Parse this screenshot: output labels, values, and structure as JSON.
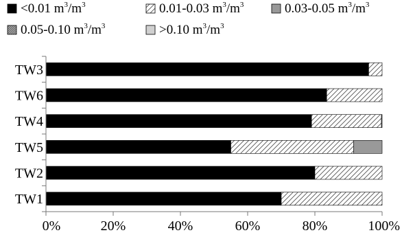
{
  "chart_data": {
    "type": "bar",
    "orientation": "horizontal",
    "stacked": true,
    "percent_stacked": true,
    "categories": [
      "TW3",
      "TW6",
      "TW4",
      "TW5",
      "TW2",
      "TW1"
    ],
    "series": [
      {
        "name": "<0.01 m³/m³",
        "name_parts": {
          "text": "<0.01 m",
          "sup1": "3",
          "mid": "/m",
          "sup2": "3"
        },
        "pattern": "solid-black",
        "values": [
          96,
          83.5,
          79,
          55,
          80,
          70
        ]
      },
      {
        "name": "0.01-0.03 m³/m³",
        "name_parts": {
          "text": "0.01-0.03 m",
          "sup1": "3",
          "mid": "/m",
          "sup2": "3"
        },
        "pattern": "diagonal-hatch",
        "values": [
          4,
          16.5,
          20.8,
          36.5,
          20,
          30
        ]
      },
      {
        "name": "0.03-0.05 m³/m³",
        "name_parts": {
          "text": "0.03-0.05 m",
          "sup1": "3",
          "mid": "/m",
          "sup2": "3"
        },
        "pattern": "solid-gray",
        "values": [
          0,
          0,
          0.2,
          8.5,
          0,
          0
        ]
      },
      {
        "name": "0.05-0.10 m³/m³",
        "name_parts": {
          "text": "0.05-0.10 m",
          "sup1": "3",
          "mid": "/m",
          "sup2": "3"
        },
        "pattern": "dense-hatch-gray",
        "values": [
          0,
          0,
          0,
          0,
          0,
          0
        ]
      },
      {
        "name": ">0.10 m³/m³",
        "name_parts": {
          "text": ">0.10 m",
          "sup1": "3",
          "mid": "/m",
          "sup2": "3"
        },
        "pattern": "light-gray",
        "values": [
          0,
          0,
          0,
          0,
          0,
          0
        ]
      }
    ],
    "x_ticks": [
      "0%",
      "20%",
      "40%",
      "60%",
      "80%",
      "100%"
    ],
    "xlim": [
      0,
      100
    ],
    "legend_position": "top",
    "grid": false,
    "colors": {
      "solid_black": "#000000",
      "hatch_stroke": "#555555",
      "solid_gray": "#999999",
      "dense_hatch_bg": "#b0b0b0",
      "light_gray": "#d0d0d0",
      "axis": "#777777"
    }
  }
}
